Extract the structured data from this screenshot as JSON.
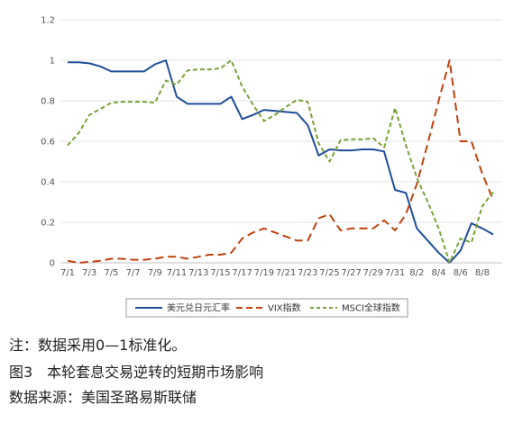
{
  "chart_data": {
    "type": "line",
    "ylim": [
      0,
      1.2
    ],
    "yticks": [
      "0",
      "0.2",
      "0.4",
      "0.6",
      "0.8",
      "1",
      "1.2"
    ],
    "grid": true,
    "legend_position": "bottom",
    "x_labels": [
      "7/1",
      "7/3",
      "7/5",
      "7/7",
      "7/9",
      "7/11",
      "7/13",
      "7/15",
      "7/17",
      "7/19",
      "7/21",
      "7/23",
      "7/25",
      "7/27",
      "7/29",
      "7/31",
      "8/2",
      "8/4",
      "8/6",
      "8/8"
    ],
    "x": [
      "7/1",
      "7/2",
      "7/3",
      "7/4",
      "7/5",
      "7/6",
      "7/7",
      "7/8",
      "7/9",
      "7/10",
      "7/11",
      "7/12",
      "7/13",
      "7/14",
      "7/15",
      "7/16",
      "7/17",
      "7/18",
      "7/19",
      "7/20",
      "7/21",
      "7/22",
      "7/23",
      "7/24",
      "7/25",
      "7/26",
      "7/27",
      "7/28",
      "7/29",
      "7/30",
      "7/31",
      "8/1",
      "8/2",
      "8/3",
      "8/4",
      "8/5",
      "8/6",
      "8/7",
      "8/8",
      "8/9"
    ],
    "series": [
      {
        "name": "美元兑日元汇率",
        "color": "#1f4e9a",
        "style": "solid",
        "values": [
          0.99,
          0.99,
          0.985,
          0.97,
          0.945,
          0.945,
          0.945,
          0.945,
          0.98,
          1.0,
          0.82,
          0.785,
          0.785,
          0.785,
          0.785,
          0.82,
          0.71,
          0.73,
          0.755,
          0.75,
          0.745,
          0.74,
          0.68,
          0.53,
          0.56,
          0.555,
          0.555,
          0.56,
          0.56,
          0.55,
          0.36,
          0.345,
          0.17,
          0.11,
          0.05,
          0.0,
          0.06,
          0.195,
          0.17,
          0.14
        ]
      },
      {
        "name": "VIX指数",
        "color": "#c0410f",
        "style": "dashed",
        "values": [
          0.01,
          0.0,
          0.005,
          0.01,
          0.02,
          0.02,
          0.015,
          0.015,
          0.02,
          0.03,
          0.03,
          0.02,
          0.03,
          0.04,
          0.04,
          0.05,
          0.12,
          0.15,
          0.17,
          0.15,
          0.13,
          0.11,
          0.11,
          0.22,
          0.24,
          0.16,
          0.17,
          0.17,
          0.17,
          0.21,
          0.16,
          0.24,
          0.39,
          0.59,
          0.8,
          1.0,
          0.6,
          0.6,
          0.44,
          0.31
        ]
      },
      {
        "name": "MSCI全球指数",
        "color": "#7aa23a",
        "style": "dashed",
        "values": [
          0.58,
          0.64,
          0.73,
          0.76,
          0.79,
          0.795,
          0.795,
          0.795,
          0.79,
          0.9,
          0.88,
          0.95,
          0.955,
          0.955,
          0.96,
          1.0,
          0.87,
          0.78,
          0.7,
          0.73,
          0.77,
          0.805,
          0.795,
          0.59,
          0.5,
          0.605,
          0.61,
          0.61,
          0.615,
          0.57,
          0.765,
          0.58,
          0.42,
          0.3,
          0.17,
          0.0,
          0.12,
          0.1,
          0.28,
          0.35
        ]
      }
    ]
  },
  "note": "注：数据采用0—1标准化。",
  "caption": "图3　本轮套息交易逆转的短期市场影响",
  "source": "数据来源：美国圣路易斯联储"
}
